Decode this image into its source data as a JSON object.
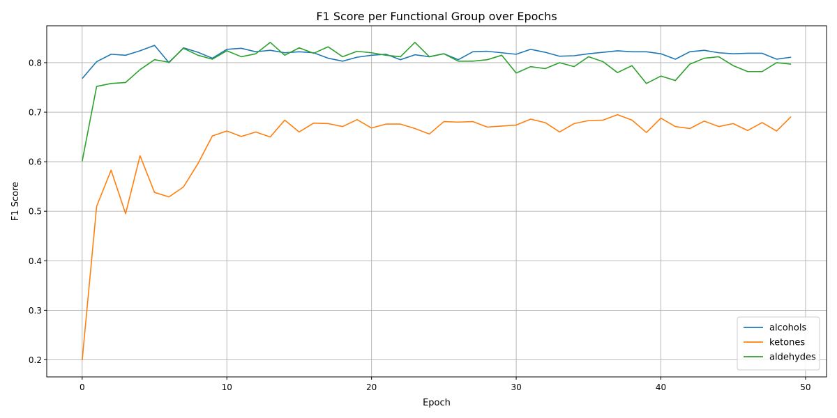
{
  "chart_data": {
    "type": "line",
    "title": "F1 Score per Functional Group over Epochs",
    "xlabel": "Epoch",
    "ylabel": "F1 Score",
    "xlim": [
      -2.45,
      51.45
    ],
    "ylim": [
      0.1655,
      0.8745
    ],
    "xticks": [
      0,
      10,
      20,
      30,
      40,
      50
    ],
    "yticks": [
      0.2,
      0.3,
      0.4,
      0.5,
      0.6,
      0.7,
      0.8
    ],
    "grid": true,
    "legend_position": "lower-right",
    "x": [
      0,
      1,
      2,
      3,
      4,
      5,
      6,
      7,
      8,
      9,
      10,
      11,
      12,
      13,
      14,
      15,
      16,
      17,
      18,
      19,
      20,
      21,
      22,
      23,
      24,
      25,
      26,
      27,
      28,
      29,
      30,
      31,
      32,
      33,
      34,
      35,
      36,
      37,
      38,
      39,
      40,
      41,
      42,
      43,
      44,
      45,
      46,
      47,
      48,
      49
    ],
    "series": [
      {
        "name": "alcohols",
        "color": "#1f77b4",
        "values": [
          0.768,
          0.802,
          0.817,
          0.815,
          0.824,
          0.835,
          0.8,
          0.83,
          0.821,
          0.809,
          0.827,
          0.829,
          0.822,
          0.825,
          0.82,
          0.822,
          0.82,
          0.809,
          0.803,
          0.811,
          0.815,
          0.817,
          0.806,
          0.816,
          0.812,
          0.818,
          0.806,
          0.822,
          0.823,
          0.82,
          0.817,
          0.827,
          0.821,
          0.813,
          0.814,
          0.818,
          0.821,
          0.824,
          0.822,
          0.822,
          0.818,
          0.807,
          0.822,
          0.825,
          0.82,
          0.818,
          0.819,
          0.819,
          0.807,
          0.811
        ]
      },
      {
        "name": "ketones",
        "color": "#ff7f0e",
        "values": [
          0.199,
          0.51,
          0.583,
          0.495,
          0.612,
          0.538,
          0.529,
          0.549,
          0.596,
          0.652,
          0.662,
          0.651,
          0.66,
          0.65,
          0.684,
          0.66,
          0.678,
          0.677,
          0.671,
          0.685,
          0.668,
          0.676,
          0.676,
          0.667,
          0.656,
          0.681,
          0.68,
          0.681,
          0.67,
          0.672,
          0.674,
          0.686,
          0.679,
          0.66,
          0.677,
          0.683,
          0.684,
          0.695,
          0.684,
          0.659,
          0.688,
          0.671,
          0.667,
          0.682,
          0.671,
          0.677,
          0.663,
          0.679,
          0.662,
          0.691
        ]
      },
      {
        "name": "aldehydes",
        "color": "#2ca02c",
        "values": [
          0.601,
          0.752,
          0.758,
          0.76,
          0.786,
          0.806,
          0.801,
          0.829,
          0.815,
          0.807,
          0.824,
          0.812,
          0.818,
          0.841,
          0.815,
          0.83,
          0.819,
          0.832,
          0.812,
          0.823,
          0.82,
          0.815,
          0.812,
          0.841,
          0.812,
          0.818,
          0.803,
          0.803,
          0.806,
          0.815,
          0.779,
          0.792,
          0.788,
          0.8,
          0.792,
          0.812,
          0.802,
          0.78,
          0.794,
          0.758,
          0.773,
          0.764,
          0.797,
          0.809,
          0.812,
          0.794,
          0.782,
          0.782,
          0.8,
          0.797
        ]
      }
    ]
  }
}
